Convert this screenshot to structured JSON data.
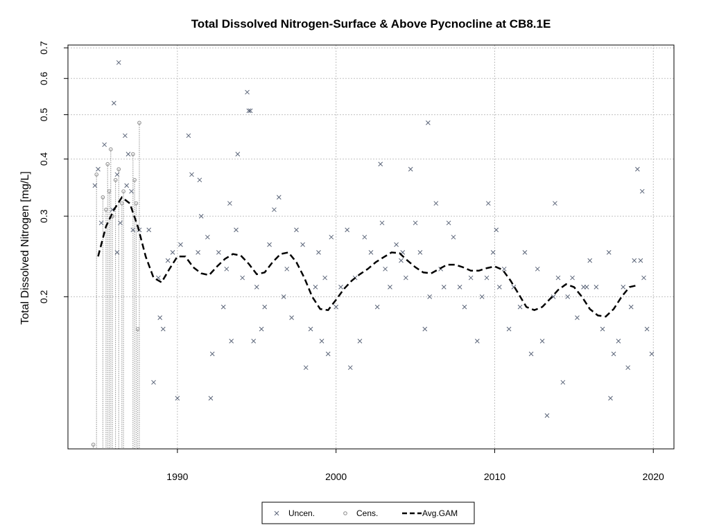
{
  "chart_data": {
    "type": "scatter",
    "title": "Total Dissolved Nitrogen-Surface & Above Pycnocline at CB8.1E",
    "xlabel": "",
    "ylabel": "Total Dissolved Nitrogen [mg/L]",
    "y_scale": "log",
    "xlim": [
      1983.1,
      2021.3
    ],
    "ylim": [
      0.093,
      0.71
    ],
    "x_ticks": [
      1990,
      2000,
      2010,
      2020
    ],
    "y_ticks": [
      0.2,
      0.3,
      0.4,
      0.5,
      0.6,
      0.7
    ],
    "x_tick_labels": [
      "1990",
      "2000",
      "2010",
      "2020"
    ],
    "y_tick_labels": [
      "0.2",
      "0.3",
      "0.4",
      "0.5",
      "0.6",
      "0.7"
    ],
    "grid": true,
    "legend_position": "bottom-center",
    "legend": [
      {
        "label": "Uncen.",
        "marker": "x"
      },
      {
        "label": "Cens.",
        "marker": "o"
      },
      {
        "label": "Avg.GAM",
        "marker": "dashed-line"
      }
    ],
    "colors": {
      "uncensored": "#5a6478",
      "censored": "#8a8a8a",
      "gam": "#000000",
      "grid": "#c0c0c0"
    },
    "censored": {
      "x": [
        1984.7,
        1984.9,
        1985.3,
        1985.5,
        1985.6,
        1985.7,
        1985.8,
        1985.9,
        1986.1,
        1986.3,
        1986.5,
        1986.6,
        1987.2,
        1987.3,
        1987.4,
        1987.5,
        1987.6
      ],
      "y": [
        0.095,
        0.37,
        0.33,
        0.31,
        0.39,
        0.34,
        0.42,
        0.3,
        0.36,
        0.38,
        0.32,
        0.34,
        0.41,
        0.36,
        0.32,
        0.17,
        0.48
      ]
    },
    "gam": {
      "x": [
        1985.0,
        1985.5,
        1986.0,
        1986.5,
        1987.0,
        1987.5,
        1988.0,
        1988.5,
        1989.0,
        1989.5,
        1990.0,
        1990.5,
        1991.0,
        1991.5,
        1992.0,
        1992.5,
        1993.0,
        1993.5,
        1994.0,
        1994.5,
        1995.0,
        1995.5,
        1996.0,
        1996.5,
        1997.0,
        1997.5,
        1998.0,
        1998.5,
        1999.0,
        1999.5,
        2000.0,
        2000.5,
        2001.0,
        2001.5,
        2002.0,
        2002.5,
        2003.0,
        2003.5,
        2004.0,
        2004.5,
        2005.0,
        2005.5,
        2006.0,
        2006.5,
        2007.0,
        2007.5,
        2008.0,
        2008.5,
        2009.0,
        2009.5,
        2010.0,
        2010.5,
        2011.0,
        2011.5,
        2012.0,
        2012.5,
        2013.0,
        2013.5,
        2014.0,
        2014.5,
        2015.0,
        2015.5,
        2016.0,
        2016.5,
        2017.0,
        2017.5,
        2018.0,
        2018.5,
        2019.0
      ],
      "y": [
        0.245,
        0.285,
        0.31,
        0.33,
        0.32,
        0.285,
        0.245,
        0.22,
        0.215,
        0.23,
        0.245,
        0.245,
        0.232,
        0.225,
        0.223,
        0.233,
        0.242,
        0.248,
        0.246,
        0.236,
        0.224,
        0.226,
        0.238,
        0.248,
        0.25,
        0.238,
        0.22,
        0.2,
        0.188,
        0.187,
        0.197,
        0.208,
        0.217,
        0.224,
        0.23,
        0.238,
        0.244,
        0.25,
        0.249,
        0.24,
        0.232,
        0.226,
        0.225,
        0.23,
        0.235,
        0.235,
        0.232,
        0.228,
        0.228,
        0.231,
        0.233,
        0.229,
        0.217,
        0.203,
        0.19,
        0.187,
        0.19,
        0.198,
        0.207,
        0.213,
        0.21,
        0.2,
        0.188,
        0.182,
        0.181,
        0.188,
        0.2,
        0.21,
        0.212
      ]
    },
    "uncensored": {
      "x": [
        1984.8,
        1985.0,
        1985.2,
        1985.4,
        1985.9,
        1986.0,
        1986.2,
        1986.3,
        1986.4,
        1986.7,
        1986.8,
        1986.9,
        1987.1,
        1987.2,
        1987.6,
        1988.2,
        1988.5,
        1988.8,
        1989.1,
        1989.4,
        1989.7,
        1990.2,
        1990.7,
        1990.9,
        1991.3,
        1991.5,
        1991.9,
        1992.2,
        1992.6,
        1992.9,
        1993.1,
        1993.4,
        1993.7,
        1993.8,
        1994.1,
        1994.4,
        1994.5,
        1994.8,
        1995.0,
        1995.3,
        1995.5,
        1995.8,
        1996.1,
        1996.4,
        1996.7,
        1996.9,
        1997.2,
        1997.5,
        1997.9,
        1998.1,
        1998.4,
        1998.7,
        1998.9,
        1999.1,
        1999.3,
        1999.7,
        2000.0,
        2000.3,
        2000.7,
        2000.9,
        2001.2,
        2001.5,
        2001.8,
        2002.2,
        2002.6,
        2002.9,
        2003.1,
        2003.4,
        2003.8,
        2004.1,
        2004.4,
        2004.7,
        2005.0,
        2005.3,
        2005.6,
        2005.9,
        2006.3,
        2006.6,
        2006.8,
        2007.1,
        2007.4,
        2007.8,
        2008.1,
        2008.5,
        2008.9,
        2009.2,
        2009.5,
        2009.9,
        2010.1,
        2010.3,
        2010.6,
        2010.9,
        2011.2,
        2011.6,
        2011.9,
        2012.3,
        2012.7,
        2013.0,
        2013.3,
        2013.7,
        2014.0,
        2014.3,
        2014.6,
        2014.9,
        2015.2,
        2015.6,
        2016.0,
        2016.4,
        2016.8,
        2017.2,
        2017.5,
        2017.8,
        2018.1,
        2018.4,
        2018.6,
        2018.8,
        2019.0,
        2019.2,
        2019.4,
        2019.6,
        2019.9,
        1990.0,
        1992.1,
        1994.6,
        1999.5,
        2005.8,
        2013.8,
        2017.3,
        1986.2,
        1991.4,
        2002.8,
        2009.6,
        1988.9,
        1993.3,
        2004.2,
        2015.8,
        2019.3
      ],
      "y": [
        0.35,
        0.38,
        0.29,
        0.43,
        0.31,
        0.53,
        0.25,
        0.65,
        0.29,
        0.45,
        0.35,
        0.41,
        0.34,
        0.28,
        0.28,
        0.28,
        0.13,
        0.22,
        0.17,
        0.24,
        0.25,
        0.26,
        0.45,
        0.37,
        0.25,
        0.3,
        0.27,
        0.15,
        0.25,
        0.19,
        0.23,
        0.16,
        0.28,
        0.41,
        0.22,
        0.56,
        0.51,
        0.16,
        0.21,
        0.17,
        0.19,
        0.26,
        0.31,
        0.33,
        0.2,
        0.23,
        0.18,
        0.28,
        0.26,
        0.14,
        0.17,
        0.21,
        0.25,
        0.16,
        0.22,
        0.27,
        0.19,
        0.21,
        0.28,
        0.14,
        0.22,
        0.16,
        0.27,
        0.25,
        0.19,
        0.29,
        0.23,
        0.21,
        0.26,
        0.24,
        0.22,
        0.38,
        0.29,
        0.25,
        0.17,
        0.2,
        0.32,
        0.23,
        0.21,
        0.29,
        0.27,
        0.21,
        0.19,
        0.22,
        0.16,
        0.2,
        0.22,
        0.25,
        0.28,
        0.21,
        0.23,
        0.17,
        0.21,
        0.19,
        0.25,
        0.15,
        0.23,
        0.16,
        0.11,
        0.2,
        0.22,
        0.13,
        0.2,
        0.22,
        0.18,
        0.21,
        0.24,
        0.21,
        0.17,
        0.25,
        0.15,
        0.16,
        0.21,
        0.14,
        0.19,
        0.24,
        0.38,
        0.24,
        0.22,
        0.17,
        0.15,
        0.12,
        0.12,
        0.51,
        0.15,
        0.48,
        0.32,
        0.12,
        0.37,
        0.36,
        0.39,
        0.32,
        0.18,
        0.32,
        0.25,
        0.21,
        0.34
      ]
    }
  }
}
